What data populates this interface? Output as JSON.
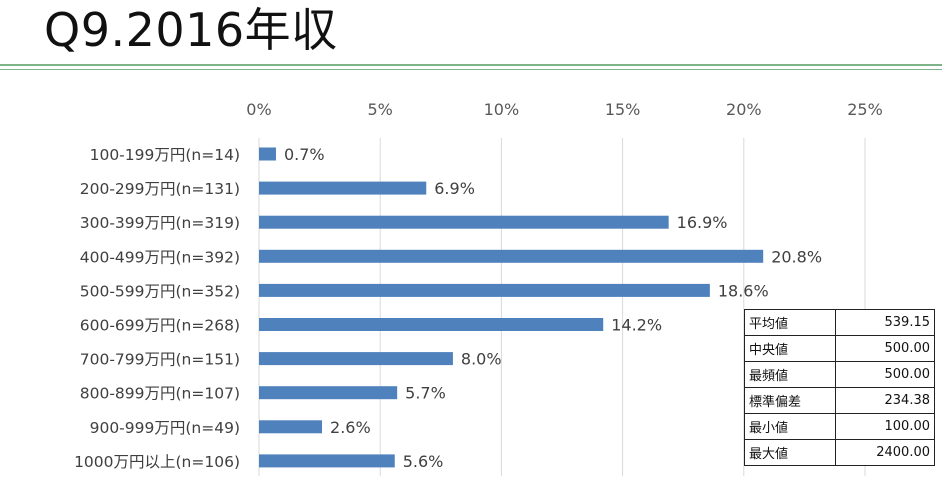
{
  "title": "Q9.2016年収",
  "chart_data": {
    "type": "bar",
    "orientation": "horizontal",
    "categories": [
      "100-199万円(n=14)",
      "200-299万円(n=131)",
      "300-399万円(n=319)",
      "400-499万円(n=392)",
      "500-599万円(n=352)",
      "600-699万円(n=268)",
      "700-799万円(n=151)",
      "800-899万円(n=107)",
      "900-999万円(n=49)",
      "1000万円以上(n=106)"
    ],
    "values": [
      0.7,
      6.9,
      16.9,
      20.8,
      18.6,
      14.2,
      8.0,
      5.7,
      2.6,
      5.6
    ],
    "value_labels": [
      "0.7%",
      "6.9%",
      "16.9%",
      "20.8%",
      "18.6%",
      "14.2%",
      "8.0%",
      "5.7%",
      "2.6%",
      "5.6%"
    ],
    "xlim": [
      0,
      25
    ],
    "x_ticks": [
      0,
      5,
      10,
      15,
      20,
      25
    ],
    "x_tick_labels": [
      "0%",
      "5%",
      "10%",
      "15%",
      "20%",
      "25%"
    ],
    "axis_position": "top",
    "grid": true,
    "bar_color": "#4f81bd",
    "xlabel": "",
    "ylabel": ""
  },
  "stats_table": [
    {
      "label": "平均値",
      "value": "539.15"
    },
    {
      "label": "中央値",
      "value": "500.00"
    },
    {
      "label": "最頻値",
      "value": "500.00"
    },
    {
      "label": "標準偏差",
      "value": "234.38"
    },
    {
      "label": "最小値",
      "value": "100.00"
    },
    {
      "label": "最大値",
      "value": "2400.00"
    }
  ],
  "colors": {
    "title_rule": "#7fb38a",
    "bar": "#4f81bd",
    "gridline": "#d9d9d9"
  }
}
